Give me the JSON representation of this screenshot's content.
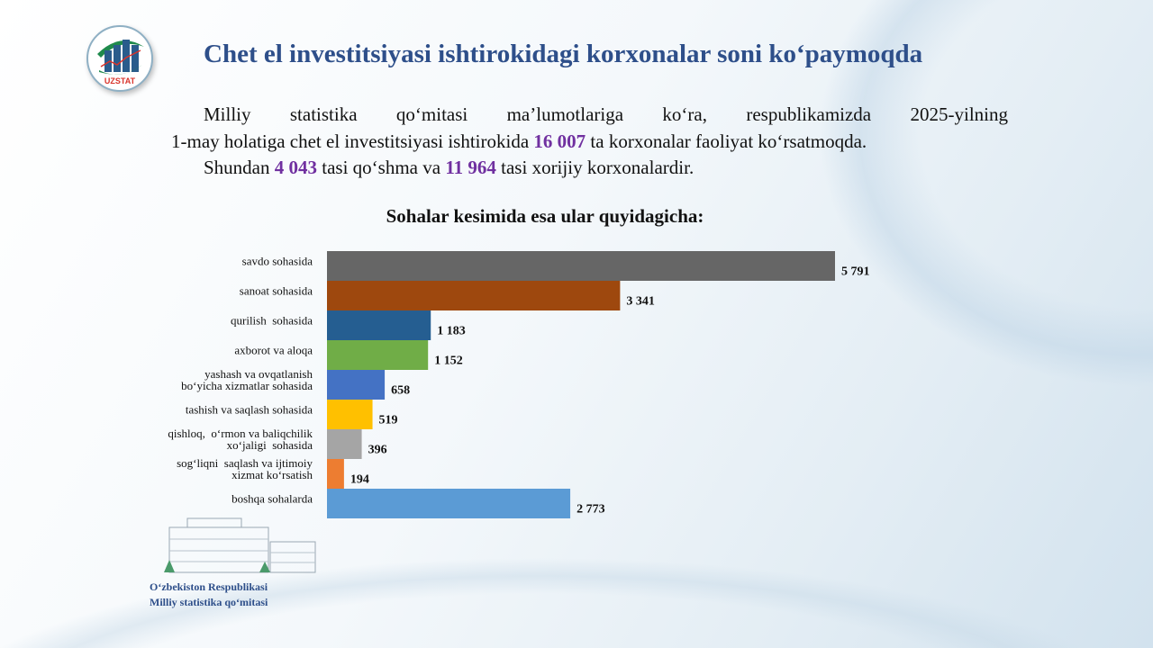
{
  "header": {
    "title": "Chet el investitsiyasi ishtirokidagi korxonalar soni ko‘paymoqda",
    "logo_text": "UZSTAT"
  },
  "intro": {
    "line1": "Milliy statistika qo‘mitasi ma’lumotlariga ko‘ra, respublikamizda 2025-yilning",
    "line2_a": "1-may holatiga chet el investitsiyasi ishtirokida ",
    "line2_num": "16 007",
    "line2_b": " ta korxonalar faoliyat ko‘rsatmoqda.",
    "line3_a": "Shundan ",
    "line3_num1": "4  043",
    "line3_b": " tasi qo‘shma va ",
    "line3_num2": "11  964",
    "line3_c": " tasi xorijiy korxonalardir."
  },
  "highlight_color": "#7030a0",
  "chart_data": {
    "type": "bar",
    "orientation": "horizontal",
    "title": "Sohalar kesimida esa ular quyidagicha:",
    "categories": [
      [
        "savdo sohasida"
      ],
      [
        "sanoat sohasida"
      ],
      [
        "qurilish  sohasida"
      ],
      [
        "axborot va aloqa"
      ],
      [
        "yashash va ovqatlanish",
        "bo‘yicha xizmatlar sohasida"
      ],
      [
        "tashish va saqlash sohasida"
      ],
      [
        "qishloq,  o‘rmon va baliqchilik",
        "xo‘jaligi  sohasida"
      ],
      [
        "sog‘liqni  saqlash va ijtimoiy",
        "xizmat ko‘rsatish"
      ],
      [
        "boshqa sohalarda"
      ]
    ],
    "values": [
      5791,
      3341,
      1183,
      1152,
      658,
      519,
      396,
      194,
      2773
    ],
    "labels": [
      "5 791",
      "3 341",
      "1 183",
      "1 152",
      "658",
      "519",
      "396",
      "194",
      "2 773"
    ],
    "colors": [
      "#666666",
      "#9e480e",
      "#255e91",
      "#70ad47",
      "#4472c4",
      "#ffc000",
      "#a5a5a5",
      "#ed7d31",
      "#5b9bd5"
    ],
    "grid": false,
    "axis_visible": false
  },
  "footer": {
    "line1": "O‘zbekiston Respublikasi",
    "line2": "Milliy statistika qo‘mitasi"
  }
}
